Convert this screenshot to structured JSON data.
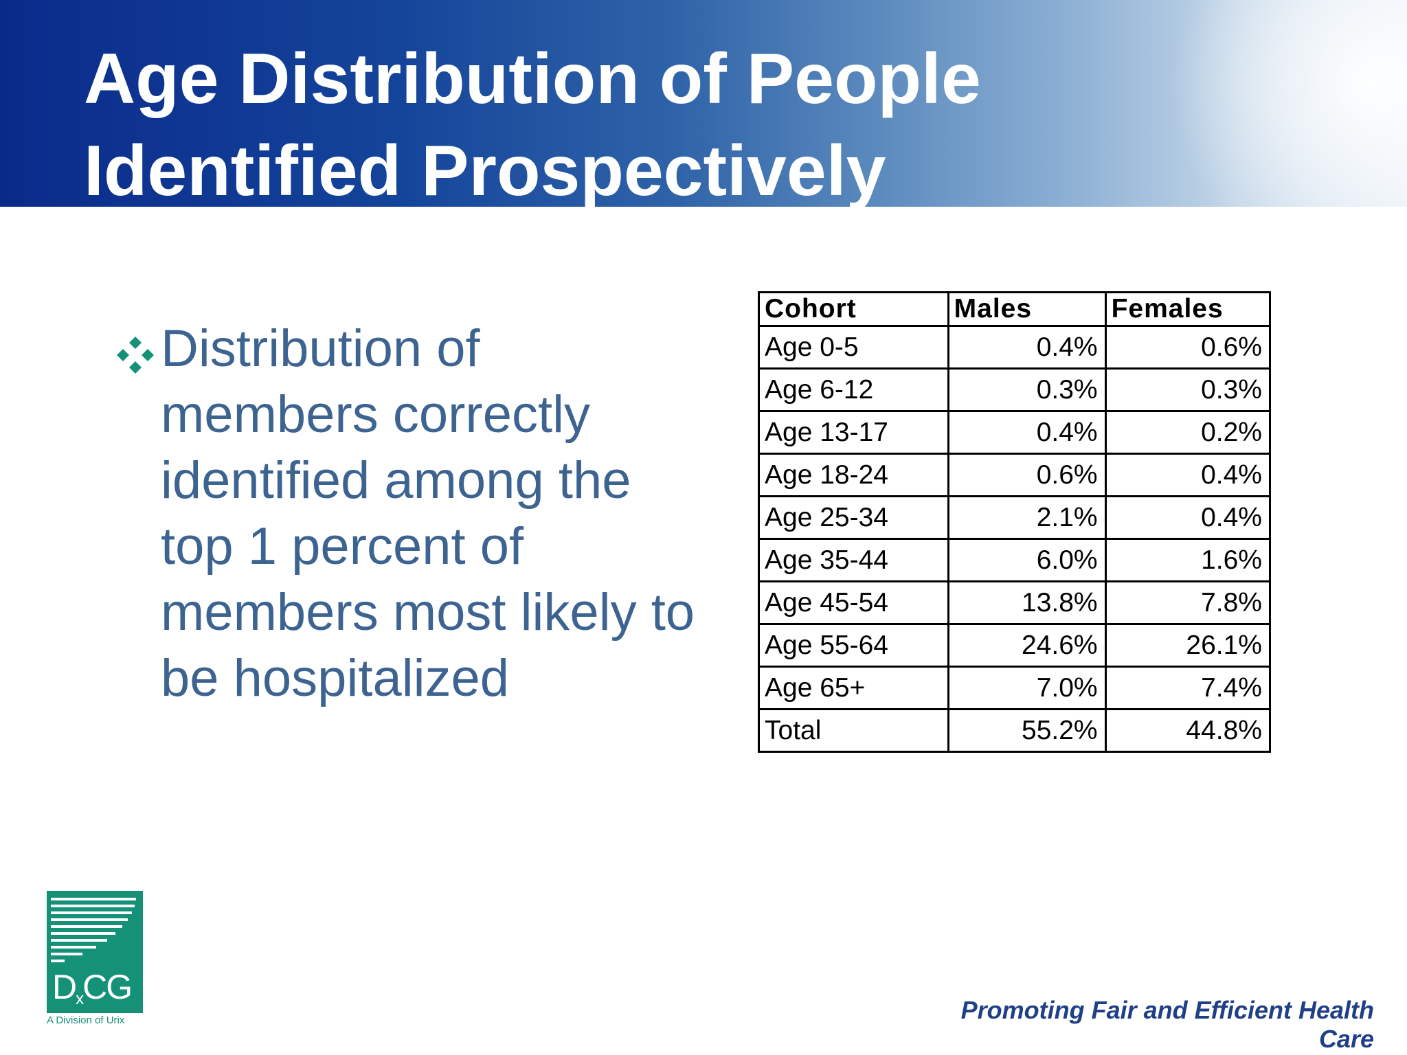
{
  "slide": {
    "title": "Age Distribution of People Identified Prospectively",
    "bullet": "Distribution of members correctly identified among the top 1 percent of members most likely to be hospitalized",
    "bullet_icon": "four-diamond-bullet-icon",
    "colors": {
      "header_dark": "#0a2a8a",
      "bullet_text": "#3d6391",
      "bullet_icon": "#149177",
      "logo": "#149177",
      "tagline": "#1f3f86"
    }
  },
  "table": {
    "headers": [
      "Cohort",
      "Males",
      "Females"
    ],
    "rows": [
      [
        "Age 0-5",
        "0.4%",
        "0.6%"
      ],
      [
        "Age 6-12",
        "0.3%",
        "0.3%"
      ],
      [
        "Age 13-17",
        "0.4%",
        "0.2%"
      ],
      [
        "Age 18-24",
        "0.6%",
        "0.4%"
      ],
      [
        "Age 25-34",
        "2.1%",
        "0.4%"
      ],
      [
        "Age 35-44",
        "6.0%",
        "1.6%"
      ],
      [
        "Age 45-54",
        "13.8%",
        "7.8%"
      ],
      [
        "Age 55-64",
        "24.6%",
        "26.1%"
      ],
      [
        "Age 65+",
        "7.0%",
        "7.4%"
      ],
      [
        "Total",
        "55.2%",
        "44.8%"
      ]
    ]
  },
  "logo": {
    "mark_main": "D",
    "mark_sub": "x",
    "mark_end": "CG",
    "subtitle": "A Division of Urix"
  },
  "footer": {
    "tagline": "Promoting Fair and Efficient Health Care"
  }
}
